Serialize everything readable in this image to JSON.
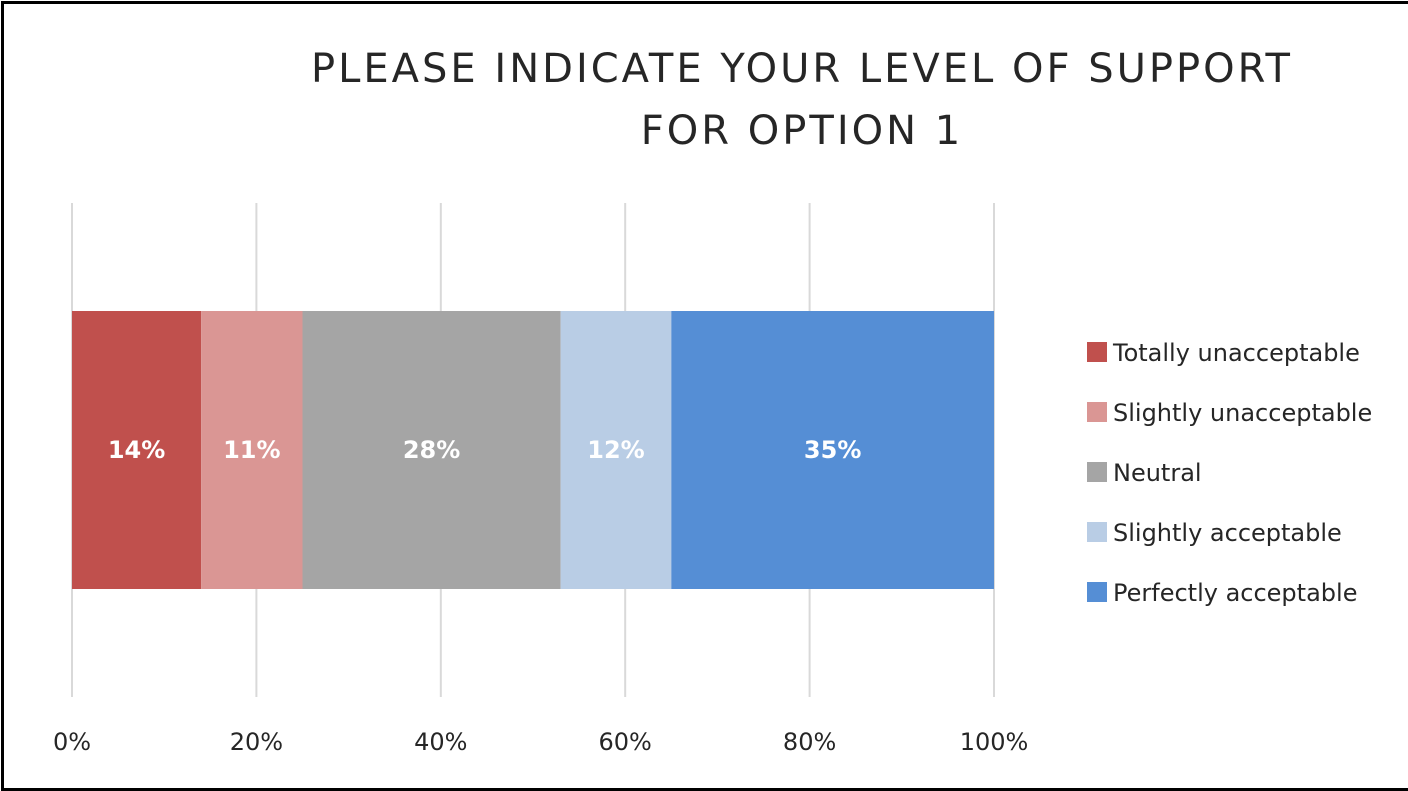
{
  "chart_data": {
    "type": "bar",
    "orientation": "horizontal",
    "stacked": "100%",
    "title": "PLEASE INDICATE YOUR LEVEL OF SUPPORT FOR OPTION 1",
    "title_lines": [
      "PLEASE INDICATE YOUR LEVEL OF SUPPORT",
      "FOR OPTION 1"
    ],
    "xlabel": "",
    "ylabel": "",
    "xlim": [
      0,
      100
    ],
    "x_ticks": [
      0,
      20,
      40,
      60,
      80,
      100
    ],
    "x_tick_labels": [
      "0%",
      "20%",
      "40%",
      "60%",
      "80%",
      "100%"
    ],
    "grid": true,
    "legend_position": "right",
    "series": [
      {
        "name": "Totally unacceptable",
        "value": 14,
        "label": "14%",
        "color": "#c0504d"
      },
      {
        "name": "Slightly unacceptable",
        "value": 11,
        "label": "11%",
        "color": "#da9694"
      },
      {
        "name": "Neutral",
        "value": 28,
        "label": "28%",
        "color": "#a5a5a5"
      },
      {
        "name": "Slightly acceptable",
        "value": 12,
        "label": "12%",
        "color": "#b9cde5"
      },
      {
        "name": "Perfectly acceptable",
        "value": 35,
        "label": "35%",
        "color": "#558ed5"
      }
    ]
  }
}
